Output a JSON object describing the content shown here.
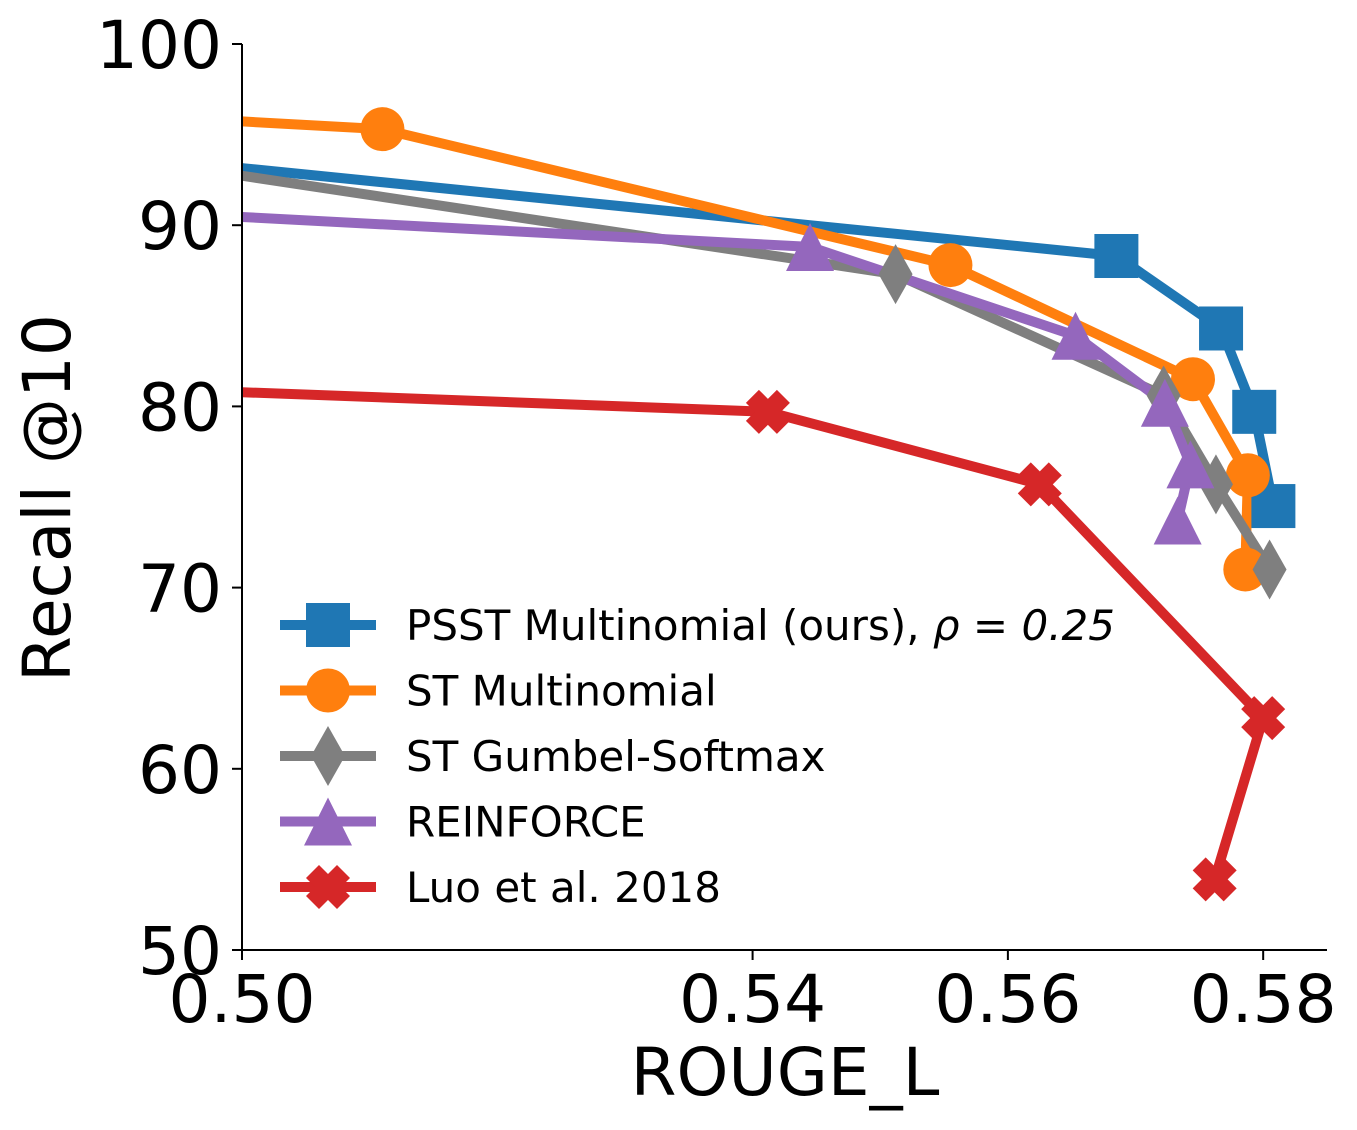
{
  "chart_data": {
    "type": "line",
    "xlabel": "ROUGE_L",
    "ylabel": "Recall @10",
    "xlim": [
      0.5,
      0.585
    ],
    "ylim": [
      50,
      100
    ],
    "xticks": [
      "0.50",
      "0.54",
      "0.56",
      "0.58"
    ],
    "xtick_values": [
      0.5,
      0.54,
      0.56,
      0.58
    ],
    "yticks": [
      "50",
      "60",
      "70",
      "80",
      "90",
      "100"
    ],
    "ytick_values": [
      50,
      60,
      70,
      80,
      90,
      100
    ],
    "grid": false,
    "legend_position": "lower-left",
    "series": [
      {
        "name": "PSST Multinomial (ours), ρ = 0.25",
        "legend_prefix": "PSST Multinomial (ours), ",
        "legend_math": "ρ = 0.25",
        "color": "#1f77b4",
        "marker": "square",
        "x": [
          0.488,
          0.5685,
          0.5767,
          0.5793,
          0.5808
        ],
        "y": [
          94.0,
          88.3,
          84.3,
          79.7,
          74.5
        ]
      },
      {
        "name": "ST Multinomial",
        "color": "#ff7f0e",
        "marker": "circle",
        "x": [
          0.488,
          0.511,
          0.5555,
          0.5745,
          0.5788,
          0.5786
        ],
        "y": [
          96.2,
          95.3,
          87.8,
          81.5,
          76.2,
          71.0
        ]
      },
      {
        "name": "ST Gumbel-Softmax",
        "color": "#7f7f7f",
        "marker": "diamond",
        "x": [
          0.488,
          0.5512,
          0.5722,
          0.5763,
          0.5805
        ],
        "y": [
          94.0,
          87.3,
          80.6,
          75.7,
          71.0
        ]
      },
      {
        "name": "REINFORCE",
        "color": "#9467bd",
        "marker": "triangle",
        "x": [
          0.488,
          0.5445,
          0.5653,
          0.5723,
          0.5743,
          0.5733
        ],
        "y": [
          90.9,
          88.8,
          83.9,
          80.2,
          76.8,
          73.7
        ]
      },
      {
        "name": "Luo et al. 2018",
        "color": "#d62728",
        "marker": "x",
        "x": [
          0.488,
          0.5412,
          0.5625,
          0.58,
          0.5762
        ],
        "y": [
          81.1,
          79.7,
          75.7,
          62.8,
          53.9
        ]
      }
    ]
  }
}
